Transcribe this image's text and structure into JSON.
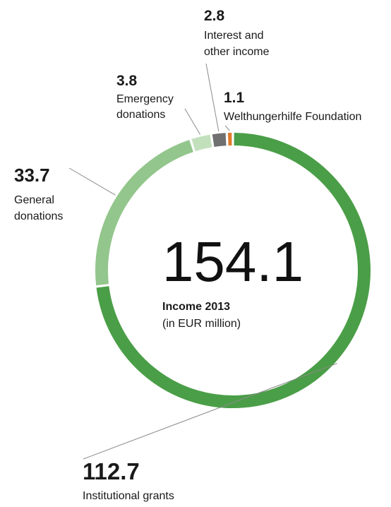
{
  "chart_data": {
    "type": "pie",
    "style": "donut",
    "total": "154.1",
    "subtitle": "Income 2013",
    "unit_note": "(in EUR million)",
    "slices": [
      {
        "label": "Institutional grants",
        "value": 112.7,
        "value_label": "112.7",
        "color": "#4a9e47"
      },
      {
        "label": "General donations",
        "value": 33.7,
        "value_label": "33.7",
        "color": "#93c68c"
      },
      {
        "label": "Emergency donations",
        "value": 3.8,
        "value_label": "3.8",
        "color": "#c3e0bd"
      },
      {
        "label": "Interest and other income",
        "value": 2.8,
        "value_label": "2.8",
        "color": "#707070"
      },
      {
        "label": "Welthungerhilfe Foundation",
        "value": 1.1,
        "value_label": "1.1",
        "color": "#e07b2c"
      }
    ]
  }
}
